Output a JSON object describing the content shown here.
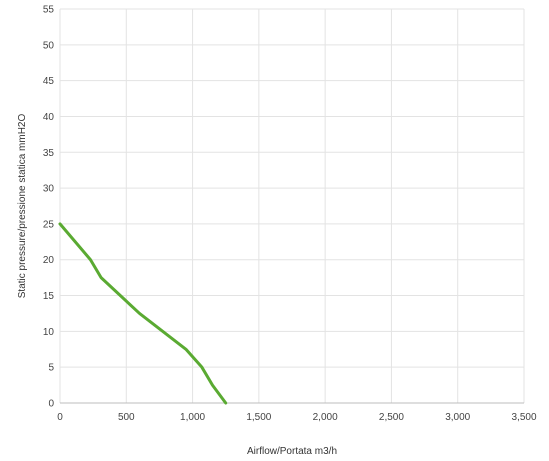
{
  "chart_data": {
    "type": "line",
    "title": "",
    "xlabel": "Airflow/Portata m3/h",
    "ylabel": "Static pressure/pressione statica mmH2O",
    "xlim": [
      0,
      3500
    ],
    "ylim": [
      0,
      55
    ],
    "x_ticks": [
      "0",
      "500",
      "1,000",
      "1,500",
      "2,000",
      "2,500",
      "3,000",
      "3,500"
    ],
    "y_ticks": [
      "0",
      "5",
      "10",
      "15",
      "20",
      "25",
      "30",
      "35",
      "40",
      "45",
      "50",
      "55"
    ],
    "grid": true,
    "legend": "none",
    "series": [
      {
        "color": "#5aaa32",
        "x": [
          0,
          230,
          310,
          600,
          950,
          1070,
          1150,
          1250
        ],
        "y": [
          25,
          20,
          17.5,
          12.5,
          7.5,
          5,
          2.5,
          0
        ]
      }
    ]
  }
}
